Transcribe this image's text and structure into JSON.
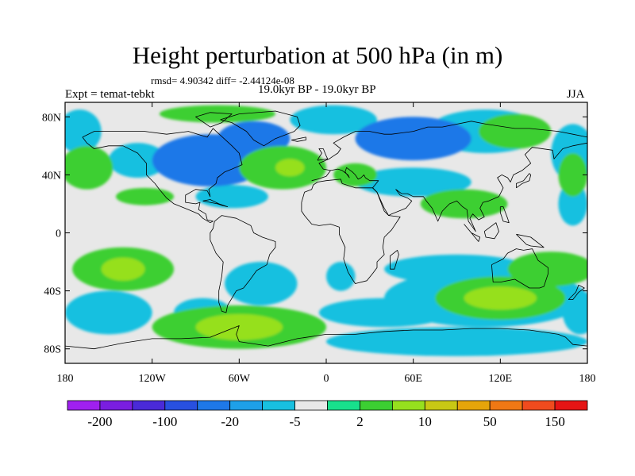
{
  "figure": {
    "title": "Height perturbation at 500 hPa (in m)",
    "stats": "rmsd= 4.90342 diff= -2.44124e-08",
    "experiment": "Expt = temat-tebkt",
    "period": "19.0kyr BP - 19.0kyr BP",
    "season": "JJA"
  },
  "axes": {
    "lon_range": [
      -180,
      180
    ],
    "lat_range": [
      -90,
      90
    ],
    "y_ticks": [
      {
        "label": "80N",
        "lat": 80
      },
      {
        "label": "40N",
        "lat": 40
      },
      {
        "label": "0",
        "lat": 0
      },
      {
        "label": "40S",
        "lat": -40
      },
      {
        "label": "80S",
        "lat": -80
      }
    ],
    "x_ticks": [
      {
        "label": "180",
        "lon": -180
      },
      {
        "label": "120W",
        "lon": -120
      },
      {
        "label": "60W",
        "lon": -60
      },
      {
        "label": "0",
        "lon": 0
      },
      {
        "label": "60E",
        "lon": 60
      },
      {
        "label": "120E",
        "lon": 120
      },
      {
        "label": "180",
        "lon": 180
      }
    ]
  },
  "colorbar": {
    "colors": [
      "#a020f0",
      "#7a1ee0",
      "#4a2ad8",
      "#2850e0",
      "#1e78e8",
      "#1ea0e8",
      "#18c0e0",
      "#e8e8e8",
      "#18e08c",
      "#3ccf32",
      "#96e01e",
      "#c8c814",
      "#e6a50a",
      "#f07814",
      "#f04b1e",
      "#e61414"
    ],
    "labels": [
      {
        "text": "-200",
        "index": 1
      },
      {
        "text": "-100",
        "index": 3
      },
      {
        "text": "-20",
        "index": 5
      },
      {
        "text": "-5",
        "index": 7
      },
      {
        "text": "2",
        "index": 9
      },
      {
        "text": "10",
        "index": 11
      },
      {
        "text": "50",
        "index": 13
      },
      {
        "text": "150",
        "index": 15
      }
    ]
  },
  "field_blobs": [
    {
      "lon": -80,
      "lat": 50,
      "rx": 40,
      "ry": 18,
      "level": -20
    },
    {
      "lon": -130,
      "lat": 50,
      "rx": 20,
      "ry": 12,
      "level": -5
    },
    {
      "lon": -50,
      "lat": 65,
      "rx": 25,
      "ry": 12,
      "level": -20
    },
    {
      "lon": -30,
      "lat": 45,
      "rx": 30,
      "ry": 15,
      "level": 10
    },
    {
      "lon": -25,
      "lat": 45,
      "rx": 10,
      "ry": 6,
      "level": 50
    },
    {
      "lon": -75,
      "lat": 82,
      "rx": 40,
      "ry": 6,
      "level": 10
    },
    {
      "lon": 5,
      "lat": 78,
      "rx": 30,
      "ry": 10,
      "level": -5
    },
    {
      "lon": -170,
      "lat": 70,
      "rx": 15,
      "ry": 15,
      "level": -5
    },
    {
      "lon": -165,
      "lat": 45,
      "rx": 18,
      "ry": 15,
      "level": 10
    },
    {
      "lon": -125,
      "lat": 25,
      "rx": 20,
      "ry": 6,
      "level": 10
    },
    {
      "lon": -65,
      "lat": 25,
      "rx": 25,
      "ry": 8,
      "level": -5
    },
    {
      "lon": 60,
      "lat": 65,
      "rx": 40,
      "ry": 15,
      "level": -20
    },
    {
      "lon": 110,
      "lat": 70,
      "rx": 40,
      "ry": 15,
      "level": -5
    },
    {
      "lon": 130,
      "lat": 70,
      "rx": 25,
      "ry": 12,
      "level": 10
    },
    {
      "lon": 20,
      "lat": 40,
      "rx": 15,
      "ry": 8,
      "level": 10
    },
    {
      "lon": 60,
      "lat": 35,
      "rx": 40,
      "ry": 10,
      "level": -5
    },
    {
      "lon": 95,
      "lat": 20,
      "rx": 30,
      "ry": 10,
      "level": 10
    },
    {
      "lon": 170,
      "lat": 55,
      "rx": 15,
      "ry": 20,
      "level": -5
    },
    {
      "lon": 170,
      "lat": 40,
      "rx": 10,
      "ry": 15,
      "level": 10
    },
    {
      "lon": 170,
      "lat": 20,
      "rx": 10,
      "ry": 15,
      "level": -5
    },
    {
      "lon": -140,
      "lat": -25,
      "rx": 35,
      "ry": 15,
      "level": 10
    },
    {
      "lon": -140,
      "lat": -25,
      "rx": 15,
      "ry": 8,
      "level": 50
    },
    {
      "lon": -45,
      "lat": -35,
      "rx": 25,
      "ry": 15,
      "level": -5
    },
    {
      "lon": 10,
      "lat": -30,
      "rx": 10,
      "ry": 10,
      "level": -5
    },
    {
      "lon": 90,
      "lat": -25,
      "rx": 50,
      "ry": 10,
      "level": -5
    },
    {
      "lon": 155,
      "lat": -25,
      "rx": 30,
      "ry": 12,
      "level": 10
    },
    {
      "lon": -150,
      "lat": -55,
      "rx": 30,
      "ry": 15,
      "level": -5
    },
    {
      "lon": -85,
      "lat": -55,
      "rx": 20,
      "ry": 10,
      "level": -5
    },
    {
      "lon": -60,
      "lat": -65,
      "rx": 60,
      "ry": 15,
      "level": 10
    },
    {
      "lon": -60,
      "lat": -65,
      "rx": 30,
      "ry": 9,
      "level": 50
    },
    {
      "lon": 40,
      "lat": -55,
      "rx": 45,
      "ry": 10,
      "level": -5
    },
    {
      "lon": 110,
      "lat": -45,
      "rx": 70,
      "ry": 20,
      "level": -5
    },
    {
      "lon": 120,
      "lat": -45,
      "rx": 45,
      "ry": 15,
      "level": 10
    },
    {
      "lon": 120,
      "lat": -45,
      "rx": 25,
      "ry": 8,
      "level": 50
    },
    {
      "lon": 90,
      "lat": -75,
      "rx": 90,
      "ry": 10,
      "level": -5
    },
    {
      "lon": 175,
      "lat": -55,
      "rx": 12,
      "ry": 15,
      "level": -5
    }
  ],
  "coastlines": [
    [
      [
        -168,
        66
      ],
      [
        -160,
        70
      ],
      [
        -140,
        70
      ],
      [
        -125,
        70
      ],
      [
        -110,
        68
      ],
      [
        -95,
        70
      ],
      [
        -82,
        66
      ],
      [
        -78,
        72
      ],
      [
        -65,
        60
      ],
      [
        -60,
        55
      ],
      [
        -58,
        47
      ],
      [
        -65,
        44
      ],
      [
        -70,
        42
      ],
      [
        -75,
        38
      ],
      [
        -76,
        34
      ],
      [
        -81,
        30
      ],
      [
        -80,
        25
      ],
      [
        -82,
        29
      ],
      [
        -90,
        30
      ],
      [
        -97,
        26
      ],
      [
        -97,
        21
      ],
      [
        -90,
        20
      ],
      [
        -87,
        21
      ],
      [
        -88,
        16
      ],
      [
        -83,
        13
      ],
      [
        -82,
        9
      ],
      [
        -78,
        8
      ],
      [
        -80,
        7
      ],
      [
        -85,
        10
      ],
      [
        -88,
        13
      ],
      [
        -95,
        16
      ],
      [
        -105,
        20
      ],
      [
        -110,
        24
      ],
      [
        -115,
        30
      ],
      [
        -118,
        34
      ],
      [
        -124,
        40
      ],
      [
        -124,
        48
      ],
      [
        -130,
        55
      ],
      [
        -140,
        60
      ],
      [
        -150,
        60
      ],
      [
        -160,
        58
      ],
      [
        -165,
        62
      ],
      [
        -168,
        66
      ]
    ],
    [
      [
        -77,
        8
      ],
      [
        -72,
        12
      ],
      [
        -62,
        10
      ],
      [
        -52,
        5
      ],
      [
        -50,
        0
      ],
      [
        -44,
        -3
      ],
      [
        -35,
        -6
      ],
      [
        -35,
        -10
      ],
      [
        -39,
        -15
      ],
      [
        -41,
        -22
      ],
      [
        -48,
        -26
      ],
      [
        -53,
        -33
      ],
      [
        -57,
        -38
      ],
      [
        -62,
        -40
      ],
      [
        -65,
        -45
      ],
      [
        -68,
        -50
      ],
      [
        -69,
        -55
      ],
      [
        -72,
        -54
      ],
      [
        -74,
        -48
      ],
      [
        -74,
        -40
      ],
      [
        -72,
        -30
      ],
      [
        -71,
        -20
      ],
      [
        -76,
        -14
      ],
      [
        -80,
        -5
      ],
      [
        -80,
        0
      ],
      [
        -78,
        3
      ],
      [
        -77,
        8
      ]
    ],
    [
      [
        -73,
        78
      ],
      [
        -60,
        82
      ],
      [
        -35,
        84
      ],
      [
        -20,
        80
      ],
      [
        -18,
        74
      ],
      [
        -22,
        70
      ],
      [
        -35,
        65
      ],
      [
        -43,
        60
      ],
      [
        -50,
        64
      ],
      [
        -55,
        70
      ],
      [
        -65,
        76
      ],
      [
        -73,
        78
      ]
    ],
    [
      [
        -10,
        36
      ],
      [
        -6,
        37
      ],
      [
        0,
        39
      ],
      [
        3,
        43
      ],
      [
        -2,
        44
      ],
      [
        -5,
        48
      ],
      [
        2,
        51
      ],
      [
        5,
        53
      ],
      [
        8,
        55
      ],
      [
        10,
        58
      ],
      [
        5,
        62
      ],
      [
        12,
        66
      ],
      [
        20,
        70
      ],
      [
        30,
        70
      ],
      [
        40,
        68
      ],
      [
        45,
        68
      ],
      [
        60,
        70
      ],
      [
        70,
        73
      ],
      [
        80,
        73
      ],
      [
        100,
        77
      ],
      [
        110,
        75
      ],
      [
        130,
        72
      ],
      [
        140,
        72
      ],
      [
        160,
        70
      ],
      [
        170,
        68
      ],
      [
        180,
        66
      ]
    ],
    [
      [
        180,
        62
      ],
      [
        170,
        60
      ],
      [
        163,
        58
      ],
      [
        157,
        51
      ],
      [
        156,
        57
      ],
      [
        142,
        59
      ],
      [
        137,
        54
      ],
      [
        141,
        48
      ],
      [
        135,
        43
      ],
      [
        129,
        40
      ],
      [
        127,
        35
      ],
      [
        125,
        38
      ],
      [
        121,
        40
      ],
      [
        118,
        38
      ],
      [
        122,
        31
      ],
      [
        119,
        25
      ],
      [
        112,
        22
      ],
      [
        108,
        21
      ],
      [
        106,
        17
      ],
      [
        109,
        11
      ],
      [
        105,
        9
      ],
      [
        101,
        13
      ],
      [
        99,
        10
      ],
      [
        103,
        1
      ],
      [
        98,
        8
      ],
      [
        97,
        16
      ],
      [
        94,
        18
      ],
      [
        90,
        22
      ],
      [
        85,
        20
      ],
      [
        80,
        15
      ],
      [
        77,
        8
      ],
      [
        73,
        17
      ],
      [
        69,
        22
      ],
      [
        67,
        25
      ],
      [
        60,
        25
      ],
      [
        56,
        27
      ],
      [
        52,
        27
      ],
      [
        48,
        30
      ],
      [
        51,
        26
      ],
      [
        56,
        24
      ],
      [
        59,
        22
      ],
      [
        55,
        17
      ],
      [
        45,
        13
      ],
      [
        43,
        12
      ],
      [
        40,
        15
      ],
      [
        35,
        28
      ],
      [
        32,
        31
      ],
      [
        36,
        36
      ],
      [
        30,
        36
      ],
      [
        27,
        38
      ],
      [
        26,
        40
      ],
      [
        24,
        38
      ],
      [
        22,
        37
      ],
      [
        20,
        40
      ],
      [
        18,
        42
      ],
      [
        14,
        45
      ],
      [
        13,
        42
      ],
      [
        16,
        38
      ],
      [
        15,
        40
      ],
      [
        11,
        43
      ],
      [
        8,
        44
      ],
      [
        3,
        43
      ]
    ],
    [
      [
        -17,
        21
      ],
      [
        -15,
        28
      ],
      [
        -10,
        30
      ],
      [
        -9,
        33
      ],
      [
        -6,
        35
      ],
      [
        0,
        36
      ],
      [
        10,
        37
      ],
      [
        11,
        34
      ],
      [
        20,
        31
      ],
      [
        30,
        31
      ],
      [
        32,
        31
      ],
      [
        35,
        28
      ],
      [
        40,
        17
      ],
      [
        43,
        12
      ],
      [
        51,
        11
      ],
      [
        45,
        2
      ],
      [
        40,
        -3
      ],
      [
        39,
        -10
      ],
      [
        40,
        -15
      ],
      [
        35,
        -20
      ],
      [
        35,
        -24
      ],
      [
        32,
        -28
      ],
      [
        28,
        -33
      ],
      [
        20,
        -35
      ],
      [
        18,
        -32
      ],
      [
        15,
        -27
      ],
      [
        12,
        -18
      ],
      [
        13,
        -10
      ],
      [
        9,
        -1
      ],
      [
        9,
        4
      ],
      [
        3,
        6
      ],
      [
        -5,
        5
      ],
      [
        -10,
        6
      ],
      [
        -15,
        12
      ],
      [
        -17,
        15
      ],
      [
        -17,
        21
      ]
    ],
    [
      [
        114,
        -22
      ],
      [
        115,
        -34
      ],
      [
        120,
        -34
      ],
      [
        130,
        -32
      ],
      [
        135,
        -35
      ],
      [
        140,
        -38
      ],
      [
        147,
        -38
      ],
      [
        150,
        -37
      ],
      [
        153,
        -28
      ],
      [
        153,
        -24
      ],
      [
        146,
        -19
      ],
      [
        142,
        -11
      ],
      [
        136,
        -12
      ],
      [
        131,
        -11
      ],
      [
        125,
        -14
      ],
      [
        122,
        -18
      ],
      [
        114,
        -22
      ]
    ],
    [
      [
        -180,
        -78
      ],
      [
        -160,
        -80
      ],
      [
        -140,
        -76
      ],
      [
        -120,
        -73
      ],
      [
        -100,
        -73
      ],
      [
        -80,
        -72
      ],
      [
        -70,
        -68
      ],
      [
        -60,
        -64
      ],
      [
        -62,
        -70
      ],
      [
        -60,
        -75
      ],
      [
        -40,
        -78
      ],
      [
        -20,
        -73
      ],
      [
        0,
        -70
      ],
      [
        20,
        -70
      ],
      [
        40,
        -68
      ],
      [
        60,
        -67
      ],
      [
        80,
        -67
      ],
      [
        100,
        -66
      ],
      [
        120,
        -66
      ],
      [
        140,
        -67
      ],
      [
        160,
        -70
      ],
      [
        165,
        -72
      ],
      [
        170,
        -77
      ],
      [
        180,
        -78
      ]
    ],
    [
      [
        44,
        -25
      ],
      [
        47,
        -25
      ],
      [
        50,
        -15
      ],
      [
        49,
        -12
      ],
      [
        44,
        -16
      ],
      [
        44,
        -25
      ]
    ],
    [
      [
        -6,
        50
      ],
      [
        -5,
        52
      ],
      [
        -3,
        55
      ],
      [
        -5,
        58
      ],
      [
        -2,
        58
      ],
      [
        0,
        53
      ],
      [
        1,
        51
      ],
      [
        -6,
        50
      ]
    ],
    [
      [
        131,
        31
      ],
      [
        135,
        34
      ],
      [
        140,
        36
      ],
      [
        141,
        40
      ],
      [
        140,
        41
      ],
      [
        136,
        36
      ],
      [
        131,
        34
      ],
      [
        131,
        31
      ]
    ],
    [
      [
        95,
        6
      ],
      [
        105,
        -6
      ],
      [
        106,
        -3
      ],
      [
        100,
        0
      ],
      [
        95,
        6
      ]
    ],
    [
      [
        109,
        1
      ],
      [
        117,
        7
      ],
      [
        119,
        1
      ],
      [
        116,
        -4
      ],
      [
        110,
        -3
      ],
      [
        109,
        1
      ]
    ],
    [
      [
        131,
        -1
      ],
      [
        141,
        -3
      ],
      [
        150,
        -10
      ],
      [
        141,
        -9
      ],
      [
        138,
        -8
      ],
      [
        131,
        -1
      ]
    ],
    [
      [
        167,
        -46
      ],
      [
        172,
        -41
      ],
      [
        174,
        -36
      ],
      [
        178,
        -38
      ],
      [
        174,
        -41
      ],
      [
        170,
        -46
      ],
      [
        167,
        -46
      ]
    ],
    [
      [
        -80,
        73
      ],
      [
        -90,
        80
      ],
      [
        -80,
        83
      ],
      [
        -65,
        82
      ],
      [
        -72,
        76
      ],
      [
        -80,
        73
      ]
    ],
    [
      [
        -24,
        64
      ],
      [
        -14,
        66
      ],
      [
        -14,
        64
      ],
      [
        -20,
        63
      ],
      [
        -24,
        64
      ]
    ],
    [
      [
        120,
        18
      ],
      [
        122,
        18
      ],
      [
        125,
        10
      ],
      [
        126,
        7
      ],
      [
        122,
        8
      ],
      [
        120,
        14
      ],
      [
        120,
        18
      ]
    ],
    [
      [
        -85,
        22
      ],
      [
        -75,
        20
      ],
      [
        -72,
        19
      ],
      [
        -68,
        18
      ],
      [
        -74,
        20
      ],
      [
        -80,
        23
      ],
      [
        -85,
        22
      ]
    ]
  ]
}
